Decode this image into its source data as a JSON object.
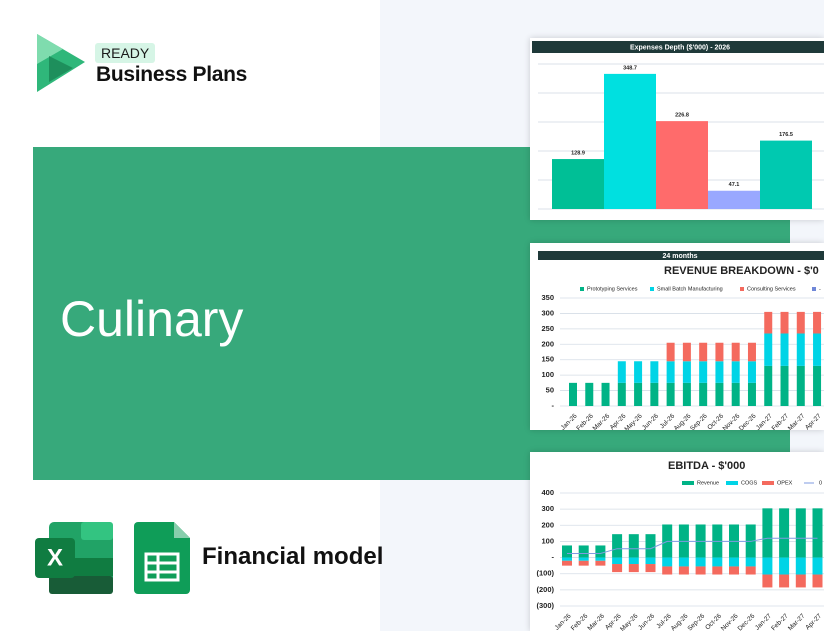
{
  "brand": {
    "tag": "READY",
    "name": "Business Plans"
  },
  "title": "Culinary",
  "footer": "Financial model",
  "chart_data": [
    {
      "type": "bar",
      "title": "Expenses Depth ($'000) - 2026",
      "categories": [
        null,
        null,
        null,
        null,
        null
      ],
      "values": [
        128.9,
        348.7,
        226.8,
        47.1,
        176.5
      ],
      "colors": [
        "#00bf96",
        "#00e0e0",
        "#ff6b6b",
        "#99a8ff",
        "#00c9b0"
      ],
      "ylim": [
        0,
        400
      ],
      "grid": true
    },
    {
      "type": "stacked-bar",
      "header": "24 months",
      "title": "REVENUE BREAKDOWN - $'0",
      "categories": [
        "Jan-26",
        "Feb-26",
        "Mar-26",
        "Apr-26",
        "May-26",
        "Jun-26",
        "Jul-26",
        "Aug-26",
        "Sep-26",
        "Oct-26",
        "Nov-26",
        "Dec-26",
        "Jan-27",
        "Feb-27",
        "Mar-27",
        "Apr-27"
      ],
      "series": [
        {
          "name": "Prototyping Services",
          "color": "#00b386",
          "values": [
            75,
            75,
            75,
            75,
            75,
            75,
            75,
            75,
            75,
            75,
            75,
            75,
            130,
            130,
            130,
            130
          ]
        },
        {
          "name": "Small Batch Manufacturing",
          "color": "#00d4e6",
          "values": [
            0,
            0,
            0,
            70,
            70,
            70,
            70,
            70,
            70,
            70,
            70,
            70,
            105,
            105,
            105,
            105
          ]
        },
        {
          "name": "Consulting Services",
          "color": "#f46a5e",
          "values": [
            0,
            0,
            0,
            0,
            0,
            0,
            60,
            60,
            60,
            60,
            60,
            60,
            70,
            70,
            70,
            70
          ]
        },
        {
          "name": "-",
          "color": "#6f87d8",
          "values": [
            0,
            0,
            0,
            0,
            0,
            0,
            0,
            0,
            0,
            0,
            0,
            0,
            0,
            0,
            0,
            0
          ]
        }
      ],
      "ylim": [
        0,
        350
      ],
      "yticks": [
        {
          "value": 0,
          "label": "-"
        },
        50,
        100,
        150,
        200,
        250,
        300,
        350
      ],
      "grid": true
    },
    {
      "type": "stacked-bar",
      "title": "EBITDA - $'000",
      "categories": [
        "Jan-26",
        "Feb-26",
        "Mar-26",
        "Apr-26",
        "May-26",
        "Jun-26",
        "Jul-26",
        "Aug-26",
        "Sep-26",
        "Oct-26",
        "Nov-26",
        "Dec-26",
        "Jan-27",
        "Feb-27",
        "Mar-27",
        "Apr-27"
      ],
      "series": [
        {
          "name": "Revenue",
          "color": "#00b386",
          "values": [
            75,
            75,
            75,
            145,
            145,
            145,
            205,
            205,
            205,
            205,
            205,
            205,
            305,
            305,
            305,
            305
          ]
        },
        {
          "name": "COGS",
          "color": "#00d4e6",
          "values": [
            -20,
            -20,
            -20,
            -40,
            -40,
            -40,
            -55,
            -55,
            -55,
            -55,
            -55,
            -55,
            -105,
            -105,
            -105,
            -105
          ]
        },
        {
          "name": "OPEX",
          "color": "#f46a5e",
          "values": [
            -30,
            -30,
            -30,
            -50,
            -50,
            -50,
            -50,
            -50,
            -50,
            -50,
            -50,
            -50,
            -80,
            -80,
            -80,
            -80
          ]
        },
        {
          "name": "0",
          "type": "line",
          "color": "#7f9be0",
          "values": [
            25,
            25,
            25,
            55,
            55,
            55,
            100,
            100,
            100,
            100,
            100,
            100,
            120,
            120,
            120,
            120
          ]
        }
      ],
      "ylim": [
        -300,
        400
      ],
      "yticks": [
        400,
        300,
        200,
        100,
        {
          "value": 0,
          "label": "-"
        },
        {
          "value": -100,
          "label": "(100)"
        },
        {
          "value": -200,
          "label": "(200)"
        },
        {
          "value": -300,
          "label": "(300)"
        }
      ],
      "grid": true
    }
  ]
}
